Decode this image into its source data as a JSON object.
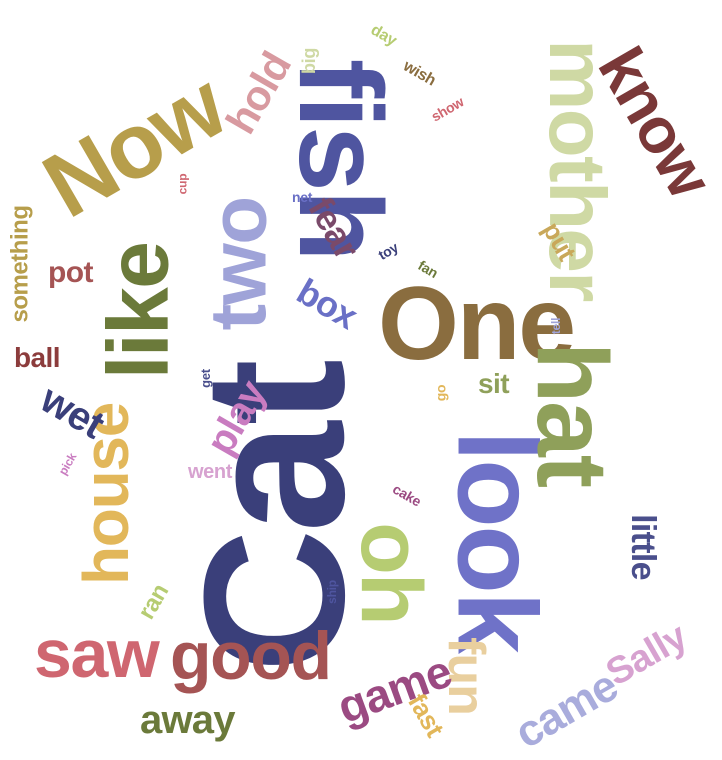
{
  "words": [
    {
      "text": "Cat",
      "color": "#3a3f7a"
    },
    {
      "text": "fish",
      "color": "#4f55a0"
    },
    {
      "text": "One",
      "color": "#8a6d3f"
    },
    {
      "text": "look",
      "color": "#6f72c8"
    },
    {
      "text": "hat",
      "color": "#8fa05a"
    },
    {
      "text": "Now",
      "color": "#b79e4b"
    },
    {
      "text": "mother",
      "color": "#cfd9a4"
    },
    {
      "text": "like",
      "color": "#6b7a3a"
    },
    {
      "text": "two",
      "color": "#9fa3d8"
    },
    {
      "text": "house",
      "color": "#e2b75a"
    },
    {
      "text": "oh",
      "color": "#b6cc72"
    },
    {
      "text": "good",
      "color": "#a55454"
    },
    {
      "text": "saw",
      "color": "#cf6670"
    },
    {
      "text": "know",
      "color": "#7a3838"
    },
    {
      "text": "fun",
      "color": "#e9cf9e"
    },
    {
      "text": "hold",
      "color": "#d89aa0"
    },
    {
      "text": "game",
      "color": "#9b4a82"
    },
    {
      "text": "came",
      "color": "#a9acdc"
    },
    {
      "text": "Sally",
      "color": "#d7a2d0"
    },
    {
      "text": "away",
      "color": "#6b7a3a"
    },
    {
      "text": "box",
      "color": "#6a70c6"
    },
    {
      "text": "fear",
      "color": "#7a4a6a"
    },
    {
      "text": "play",
      "color": "#c97cc0"
    },
    {
      "text": "little",
      "color": "#4a4f8c"
    },
    {
      "text": "wet",
      "color": "#3a3f7a"
    },
    {
      "text": "pot",
      "color": "#a55454"
    },
    {
      "text": "ball",
      "color": "#8c3c3c"
    },
    {
      "text": "something",
      "color": "#b79e4b"
    },
    {
      "text": "sit",
      "color": "#8fa05a"
    },
    {
      "text": "put",
      "color": "#c9a85a"
    },
    {
      "text": "fast",
      "color": "#e2b75a"
    },
    {
      "text": "ran",
      "color": "#b6cc72"
    },
    {
      "text": "went",
      "color": "#d7a2d0"
    },
    {
      "text": "big",
      "color": "#cfd9a4"
    },
    {
      "text": "day",
      "color": "#b6cc72"
    },
    {
      "text": "wish",
      "color": "#8a6d3f"
    },
    {
      "text": "show",
      "color": "#cf6670"
    },
    {
      "text": "cup",
      "color": "#cf6670"
    },
    {
      "text": "net",
      "color": "#6a70c6"
    },
    {
      "text": "toy",
      "color": "#3a3f7a"
    },
    {
      "text": "fan",
      "color": "#6b7a3a"
    },
    {
      "text": "tell",
      "color": "#9fa3d8"
    },
    {
      "text": "get",
      "color": "#4a4f8c"
    },
    {
      "text": "go",
      "color": "#e2b75a"
    },
    {
      "text": "pick",
      "color": "#c97cc0"
    },
    {
      "text": "cake",
      "color": "#9b4a82"
    },
    {
      "text": "ship",
      "color": "#4f55a0"
    }
  ]
}
